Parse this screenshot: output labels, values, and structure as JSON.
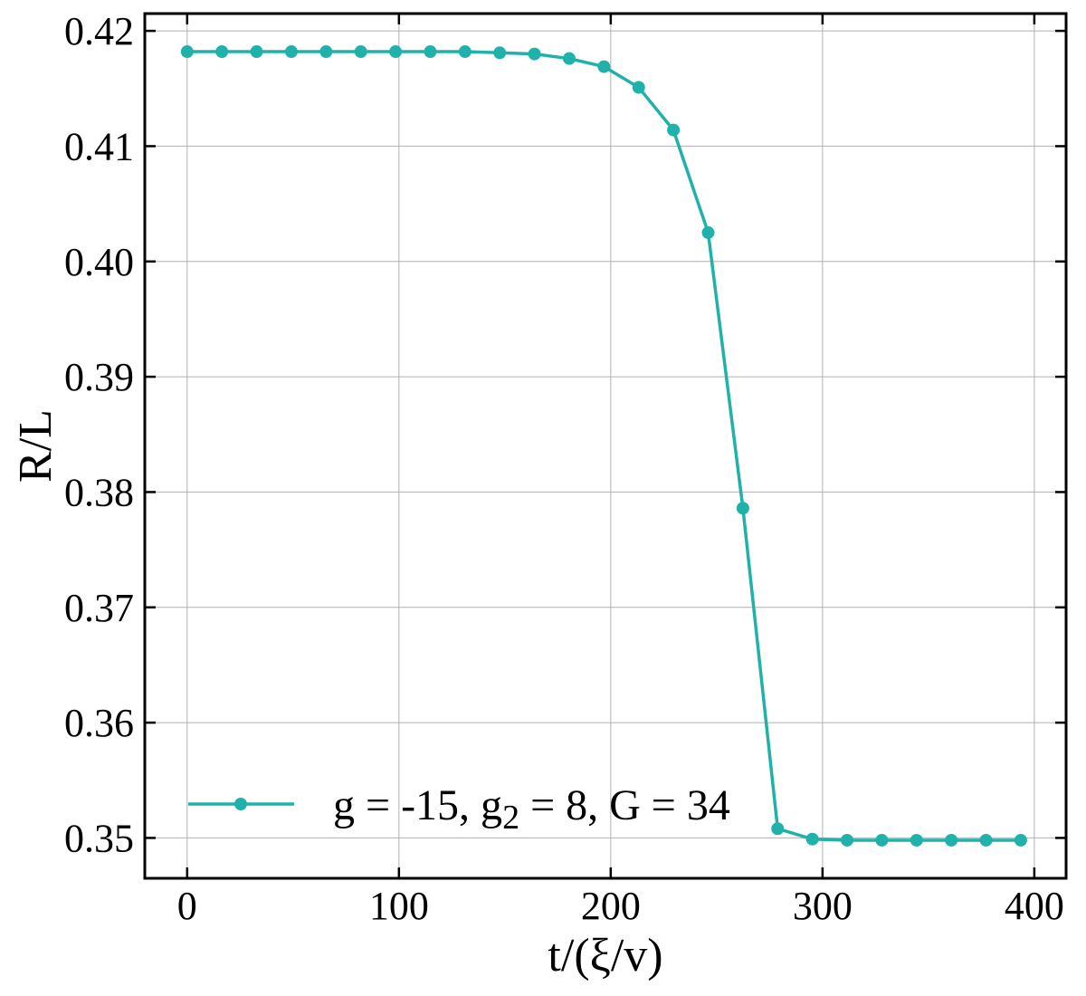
{
  "chart_data": {
    "type": "line",
    "title": "",
    "xlabel": "t/(ξ/v)",
    "ylabel": "R/L",
    "xlim": [
      -20,
      415
    ],
    "ylim": [
      0.3465,
      0.4215
    ],
    "xticks": [
      0,
      100,
      200,
      300,
      400
    ],
    "xtick_labels": [
      "0",
      "100",
      "200",
      "300",
      "400"
    ],
    "yticks": [
      0.35,
      0.36,
      0.37,
      0.38,
      0.39,
      0.4,
      0.41,
      0.42
    ],
    "ytick_labels": [
      "0.35",
      "0.36",
      "0.37",
      "0.38",
      "0.39",
      "0.40",
      "0.41",
      "0.42"
    ],
    "grid": true,
    "legend_position": "lower-left",
    "series": [
      {
        "name": "g = -15, g2 = 8, G = 34",
        "legend_parts": {
          "a": "g = -15, g",
          "sub": "2",
          "b": " = 8, G = 34"
        },
        "color": "#20b2aa",
        "x": [
          0,
          16.4,
          32.8,
          49.2,
          65.6,
          82.0,
          98.4,
          114.8,
          131.2,
          147.6,
          164.0,
          180.4,
          196.8,
          213.2,
          229.6,
          246.0,
          262.4,
          278.8,
          295.2,
          311.6,
          328.0,
          344.4,
          360.8,
          377.2,
          393.6
        ],
        "y": [
          0.4182,
          0.4182,
          0.4182,
          0.4182,
          0.4182,
          0.4182,
          0.4182,
          0.4182,
          0.4182,
          0.4181,
          0.418,
          0.4176,
          0.4169,
          0.4151,
          0.4114,
          0.4025,
          0.3786,
          0.3508,
          0.3499,
          0.3498,
          0.3498,
          0.3498,
          0.3498,
          0.3498,
          0.3498
        ]
      }
    ]
  }
}
